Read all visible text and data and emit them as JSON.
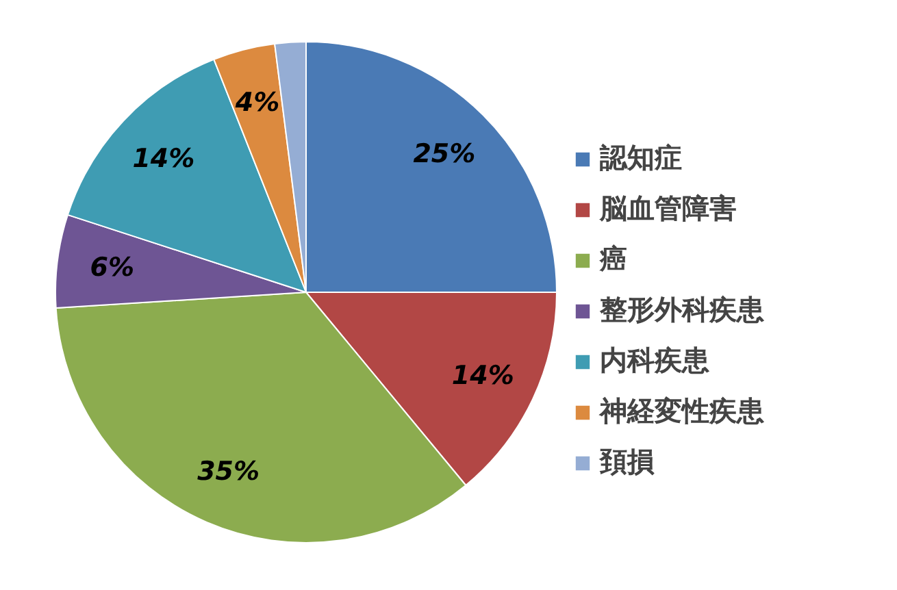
{
  "chart_data": {
    "type": "pie",
    "categories": [
      "認知症",
      "脳血管障害",
      "癌",
      "整形外科疾患",
      "内科疾患",
      "神経変性疾患",
      "頚損"
    ],
    "values": [
      25,
      14,
      35,
      6,
      14,
      4,
      2
    ],
    "colors": [
      "#4a7ab5",
      "#b24745",
      "#8cac4f",
      "#6e5594",
      "#3f9cb3",
      "#dc8a3f",
      "#95add4"
    ],
    "value_labels": [
      "25%",
      "14%",
      "35%",
      "6%",
      "14%",
      "4%",
      null
    ],
    "legend": "right"
  }
}
